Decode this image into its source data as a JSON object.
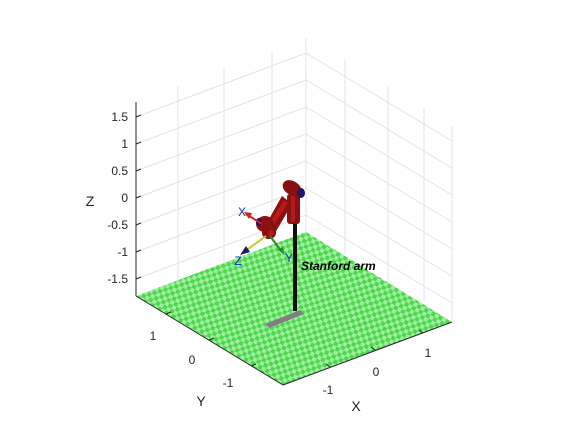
{
  "annotation": "Stanford arm",
  "axes": {
    "x": {
      "label": "X",
      "ticks": [
        "-1",
        "0",
        "1"
      ]
    },
    "y": {
      "label": "Y",
      "ticks": [
        "-1",
        "0",
        "1"
      ]
    },
    "z": {
      "label": "Z",
      "ticks": [
        "1.5",
        "1",
        "0.5",
        "0",
        "-0.5",
        "-1",
        "-1.5"
      ]
    }
  },
  "tool_frame": {
    "x_label": "X",
    "y_label": "Y",
    "z_label": "Z"
  },
  "colors": {
    "floor_light": "#9ef09e",
    "floor_dark": "#4fd64f",
    "link": "#8b1010",
    "link_shade": "#b31a1a",
    "joint": "#1a1a66",
    "pedestal": "#808080",
    "grid": "#e6e6e6",
    "axis": "#262626"
  }
}
